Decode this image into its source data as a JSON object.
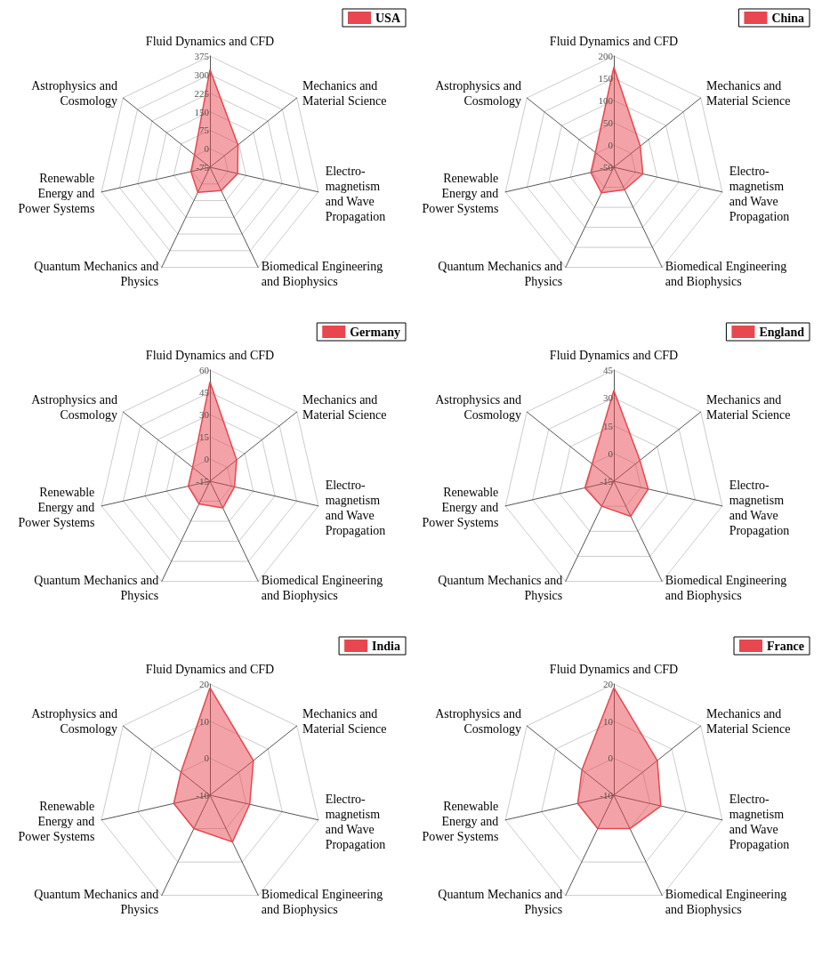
{
  "chart_data": [
    {
      "type": "radar",
      "categories": [
        "Fluid Dynamics and CFD",
        "Mechanics and\nMaterial Science",
        "Electro-\nmagnetism\nand Wave\nPropagation",
        "Biomedical Engineering\nand Biophysics",
        "Quantum Mechanics and\nPhysics",
        "Renewable\nEnergy and\nPower Systems",
        "Astrophysics and\nCosmology"
      ],
      "series": [
        {
          "name": "USA",
          "color": "#e8474f",
          "values": [
            320,
            70,
            40,
            30,
            38,
            4,
            5
          ]
        }
      ],
      "ylim": [
        -75,
        375
      ],
      "yticks": [
        -75,
        0,
        75,
        150,
        225,
        300,
        375
      ],
      "grid": true,
      "legend": "top right"
    },
    {
      "type": "radar",
      "categories": [
        "Fluid Dynamics and CFD",
        "Mechanics and\nMaterial Science",
        "Electro-\nmagnetism\nand Wave\nPropagation",
        "Biomedical Engineering\nand Biophysics",
        "Quantum Mechanics and\nPhysics",
        "Renewable\nEnergy and\nPower Systems",
        "Astrophysics and\nCosmology"
      ],
      "series": [
        {
          "name": "China",
          "color": "#e8474f",
          "values": [
            175,
            26,
            17,
            6,
            14,
            3,
            3
          ]
        }
      ],
      "ylim": [
        -50,
        200
      ],
      "yticks": [
        -50,
        0,
        50,
        100,
        150,
        200
      ],
      "grid": true,
      "legend": "top right"
    },
    {
      "type": "radar",
      "categories": [
        "Fluid Dynamics and CFD",
        "Mechanics and\nMaterial Science",
        "Electro-\nmagnetism\nand Wave\nPropagation",
        "Biomedical Engineering\nand Biophysics",
        "Quantum Mechanics and\nPhysics",
        "Renewable\nEnergy and\nPower Systems",
        "Astrophysics and\nCosmology"
      ],
      "series": [
        {
          "name": "Germany",
          "color": "#e8474f",
          "values": [
            52,
            8,
            2,
            5,
            2,
            0,
            0
          ]
        }
      ],
      "ylim": [
        -15,
        60
      ],
      "yticks": [
        -15,
        0,
        15,
        30,
        45,
        60
      ],
      "grid": true,
      "legend": "top right"
    },
    {
      "type": "radar",
      "categories": [
        "Fluid Dynamics and CFD",
        "Mechanics and\nMaterial Science",
        "Electro-\nmagnetism\nand Wave\nPropagation",
        "Biomedical Engineering\nand Biophysics",
        "Quantum Mechanics and\nPhysics",
        "Renewable\nEnergy and\nPower Systems",
        "Astrophysics and\nCosmology"
      ],
      "series": [
        {
          "name": "England",
          "color": "#e8474f",
          "values": [
            34,
            3,
            4,
            6,
            0,
            1,
            0
          ]
        }
      ],
      "ylim": [
        -15,
        45
      ],
      "yticks": [
        -15,
        0,
        15,
        30,
        45
      ],
      "grid": true,
      "legend": "top right"
    },
    {
      "type": "radar",
      "categories": [
        "Fluid Dynamics and CFD",
        "Mechanics and\nMaterial Science",
        "Electro-\nmagnetism\nand Wave\nPropagation",
        "Biomedical Engineering\nand Biophysics",
        "Quantum Mechanics and\nPhysics",
        "Renewable\nEnergy and\nPower Systems",
        "Astrophysics and\nCosmology"
      ],
      "series": [
        {
          "name": "India",
          "color": "#e8474f",
          "values": [
            19,
            5,
            1,
            4,
            0,
            0,
            0
          ]
        }
      ],
      "ylim": [
        -10,
        20
      ],
      "yticks": [
        -10,
        0,
        10,
        20
      ],
      "grid": true,
      "legend": "top right"
    },
    {
      "type": "radar",
      "categories": [
        "Fluid Dynamics and CFD",
        "Mechanics and\nMaterial Science",
        "Electro-\nmagnetism\nand Wave\nPropagation",
        "Biomedical Engineering\nand Biophysics",
        "Quantum Mechanics and\nPhysics",
        "Renewable\nEnergy and\nPower Systems",
        "Astrophysics and\nCosmology"
      ],
      "series": [
        {
          "name": "France",
          "color": "#e8474f",
          "values": [
            19,
            5,
            3,
            0,
            0,
            0,
            1
          ]
        }
      ],
      "ylim": [
        -10,
        20
      ],
      "yticks": [
        -10,
        0,
        10,
        20
      ],
      "grid": true,
      "legend": "top right"
    }
  ]
}
